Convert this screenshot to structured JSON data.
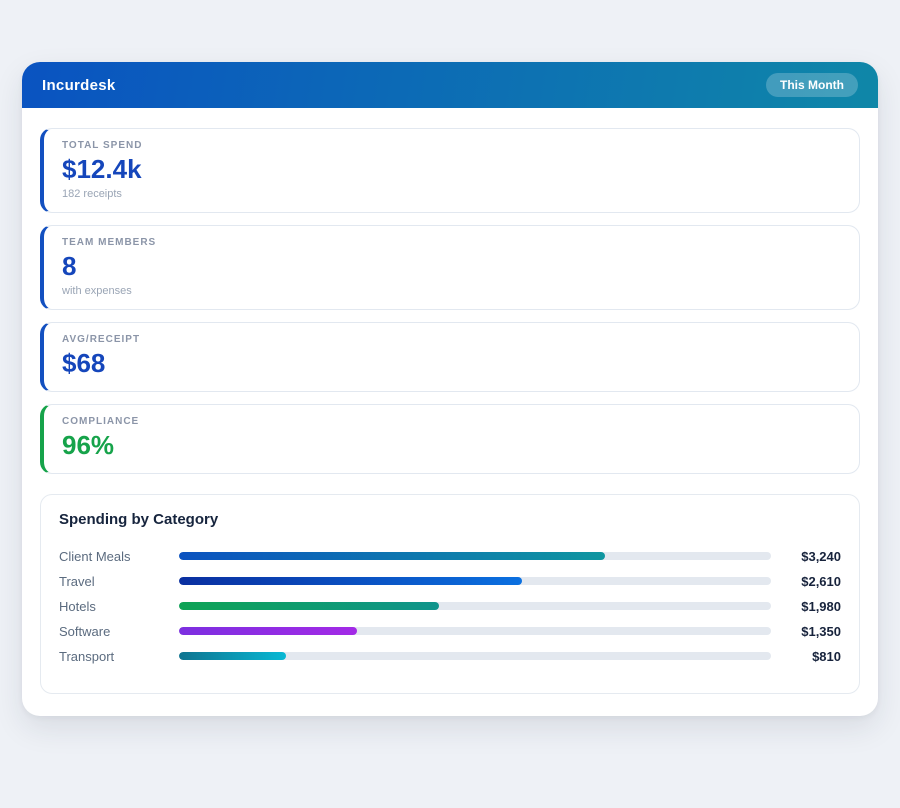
{
  "page": {
    "background": "#eef1f6"
  },
  "header": {
    "title": "Incurdesk",
    "period_label": "This Month",
    "gradient_from": "#0a53c1",
    "gradient_to": "#0f87a8"
  },
  "stats": [
    {
      "label": "TOTAL SPEND",
      "value": "$12.4k",
      "sub": "182 receipts",
      "accent": "#1350c0",
      "value_color": "#1546bb"
    },
    {
      "label": "TEAM MEMBERS",
      "value": "8",
      "sub": "with expenses",
      "accent": "#1350c0",
      "value_color": "#1546bb"
    },
    {
      "label": "AVG/RECEIPT",
      "value": "$68",
      "accent": "#1350c0",
      "value_color": "#1546bb"
    },
    {
      "label": "COMPLIANCE",
      "value": "96%",
      "accent": "#16a34a",
      "value_color": "#16a34a"
    }
  ],
  "spending": {
    "title": "Spending by Category",
    "scale_max": 4500,
    "track_color": "#e3e8ef",
    "rows": [
      {
        "label": "Client Meals",
        "value": "$3,240",
        "amount": 3240,
        "color_from": "#0b52c0",
        "color_to": "#0f96a0"
      },
      {
        "label": "Travel",
        "value": "$2,610",
        "amount": 2610,
        "color_from": "#0a2fa0",
        "color_to": "#0b70e0"
      },
      {
        "label": "Hotels",
        "value": "$1,980",
        "amount": 1980,
        "color_from": "#0ea355",
        "color_to": "#0f948c"
      },
      {
        "label": "Software",
        "value": "$1,350",
        "amount": 1350,
        "color_from": "#7c2fe0",
        "color_to": "#a32ae6"
      },
      {
        "label": "Transport",
        "value": "$810",
        "amount": 810,
        "color_from": "#0e7490",
        "color_to": "#08b8d4"
      }
    ]
  },
  "chart_data": {
    "type": "bar",
    "orientation": "horizontal",
    "title": "Spending by Category",
    "categories": [
      "Client Meals",
      "Travel",
      "Hotels",
      "Software",
      "Transport"
    ],
    "values": [
      3240,
      2610,
      1980,
      1350,
      810
    ],
    "xlabel": "",
    "ylabel": "",
    "xlim": [
      0,
      4500
    ],
    "grid": false,
    "legend": false
  }
}
